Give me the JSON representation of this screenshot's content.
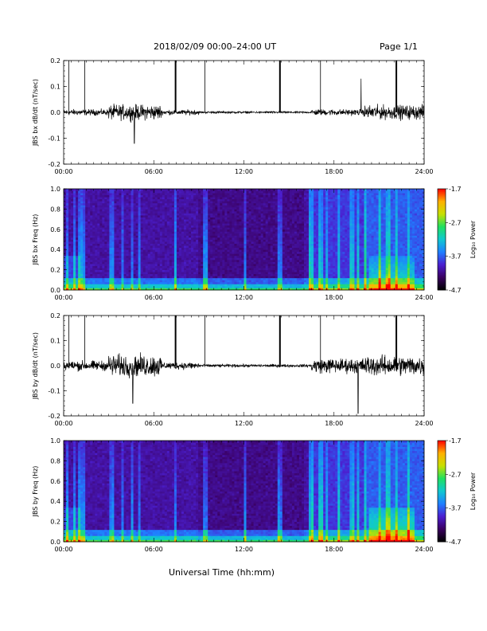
{
  "header": {
    "title": "2018/02/09  00:00–24:00 UT",
    "page": "Page 1/1"
  },
  "x_axis": {
    "label": "Universal Time (hh:mm)",
    "ticks": [
      "00:00",
      "06:00",
      "12:00",
      "18:00",
      "24:00"
    ]
  },
  "colors": {
    "trace": "#000000",
    "colorbar": [
      "#000000",
      "#3a0060",
      "#4b1fd0",
      "#1f7fff",
      "#10c8d0",
      "#20e060",
      "#c8e000",
      "#ffb000",
      "#ff0000"
    ]
  },
  "chart_data": [
    {
      "type": "line",
      "ylabel": "JBS bx dB/dt (nT/sec)",
      "xlim": [
        0,
        24
      ],
      "ylim": [
        -0.2,
        0.2
      ],
      "yticks": [
        "0.2",
        "0.1",
        "0.0",
        "-0.1",
        "-0.2"
      ],
      "spikes_hours": [
        0.35,
        1.4,
        7.45,
        9.4,
        14.4,
        17.1,
        22.15
      ],
      "activity": [
        {
          "hours": [
            0,
            3
          ],
          "amp": 0.012
        },
        {
          "hours": [
            3,
            6.5
          ],
          "amp": 0.03
        },
        {
          "hours": [
            6.5,
            9
          ],
          "amp": 0.01
        },
        {
          "hours": [
            9,
            16.5
          ],
          "amp": 0.004
        },
        {
          "hours": [
            16.5,
            20
          ],
          "amp": 0.012
        },
        {
          "hours": [
            20,
            24
          ],
          "amp": 0.028
        }
      ],
      "extremes": [
        {
          "hour": 4.7,
          "value": -0.12
        },
        {
          "hour": 19.8,
          "value": 0.13
        }
      ]
    },
    {
      "type": "heatmap",
      "ylabel": "JBS bx Freq (Hz)",
      "xlim": [
        0,
        24
      ],
      "ylim": [
        0,
        1.0
      ],
      "yticks": [
        "1.0",
        "0.8",
        "0.6",
        "0.4",
        "0.2",
        "0.0"
      ],
      "colorbar": {
        "label": "Log₁₀ Power",
        "ticks": [
          "-1.7",
          "-2.7",
          "-3.7",
          "-4.7"
        ],
        "range": [
          -4.7,
          -1.7
        ]
      }
    },
    {
      "type": "line",
      "ylabel": "JBS by dB/dt (nT/sec)",
      "xlim": [
        0,
        24
      ],
      "ylim": [
        -0.2,
        0.2
      ],
      "yticks": [
        "0.2",
        "0.1",
        "0.0",
        "-0.1",
        "-0.2"
      ],
      "spikes_hours": [
        0.35,
        1.4,
        7.45,
        9.4,
        14.4,
        17.1,
        22.15
      ],
      "activity": [
        {
          "hours": [
            0,
            3
          ],
          "amp": 0.02
        },
        {
          "hours": [
            3,
            6.5
          ],
          "amp": 0.045
        },
        {
          "hours": [
            6.5,
            9
          ],
          "amp": 0.015
        },
        {
          "hours": [
            9,
            16.5
          ],
          "amp": 0.006
        },
        {
          "hours": [
            16.5,
            20
          ],
          "amp": 0.03
        },
        {
          "hours": [
            20,
            24
          ],
          "amp": 0.04
        }
      ],
      "extremes": [
        {
          "hour": 4.6,
          "value": -0.15
        },
        {
          "hour": 19.6,
          "value": -0.19
        }
      ]
    },
    {
      "type": "heatmap",
      "ylabel": "JBS by Freq (Hz)",
      "xlim": [
        0,
        24
      ],
      "ylim": [
        0,
        1.0
      ],
      "yticks": [
        "1.0",
        "0.8",
        "0.6",
        "0.4",
        "0.2",
        "0.0"
      ],
      "colorbar": {
        "label": "Log₁₀ Power",
        "ticks": [
          "-1.7",
          "-2.7",
          "-3.7",
          "-4.7"
        ],
        "range": [
          -4.7,
          -1.7
        ]
      }
    }
  ]
}
